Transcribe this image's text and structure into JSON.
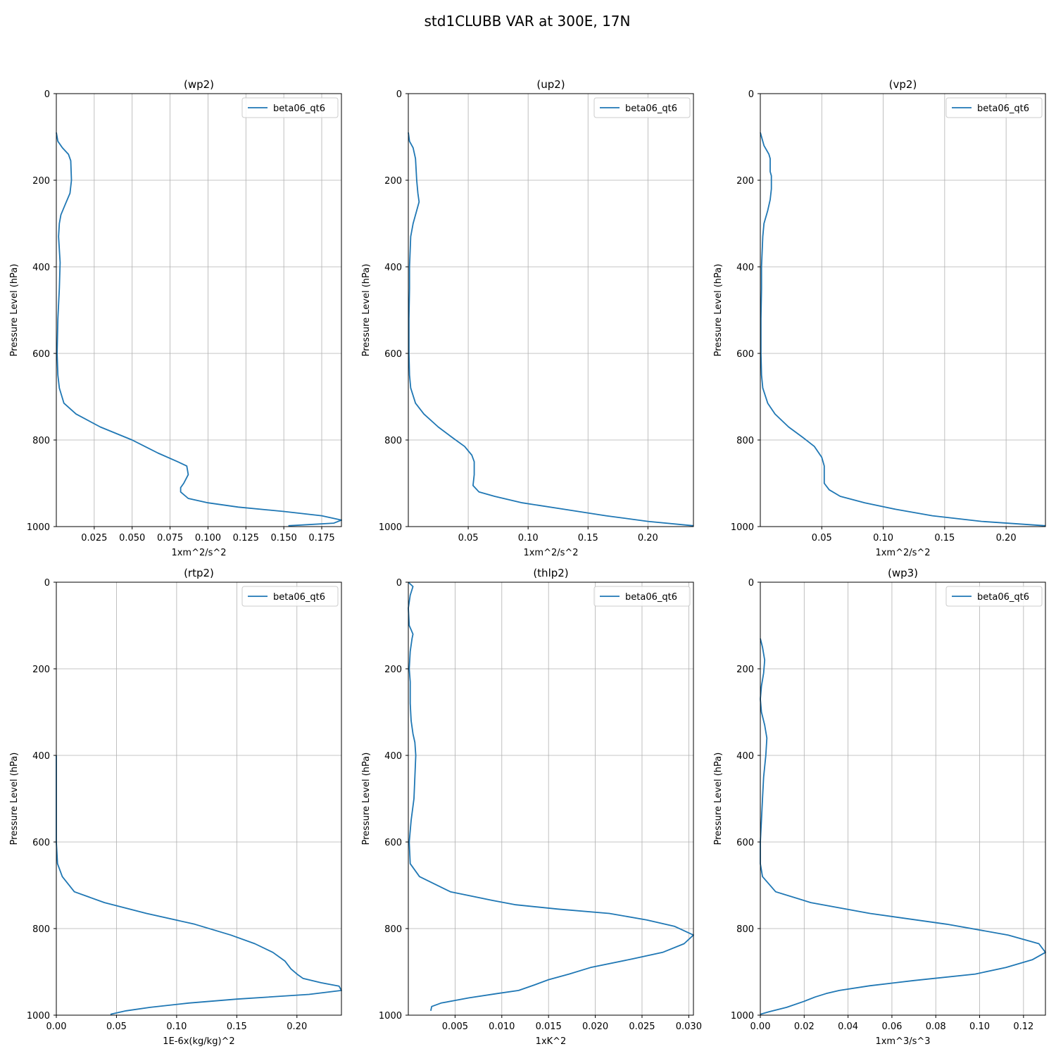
{
  "figure_title": "std1CLUBB VAR at 300E, 17N",
  "chart_data": [
    {
      "type": "line",
      "title": "(wp2)",
      "xlabel": "1xm^2/s^2",
      "ylabel": "Pressure Level (hPa)",
      "xlim": [
        0.0,
        0.188
      ],
      "ylim": [
        1000,
        0
      ],
      "xticks": [
        0.025,
        0.05,
        0.075,
        0.1,
        0.125,
        0.15,
        0.175
      ],
      "xtick_labels": [
        "0.025",
        "0.050",
        "0.075",
        "0.100",
        "0.125",
        "0.150",
        "0.175"
      ],
      "yticks": [
        0,
        200,
        400,
        600,
        800,
        1000
      ],
      "ytick_labels": [
        "0",
        "200",
        "400",
        "600",
        "800",
        "1000"
      ],
      "legend": "top-right",
      "series": [
        {
          "name": "beta06_qt6",
          "color": "#1f77b4",
          "x": [
            0.0,
            0.001,
            0.004,
            0.008,
            0.0095,
            0.01,
            0.009,
            0.006,
            0.003,
            0.002,
            0.0015,
            0.0025,
            0.002,
            0.001,
            0.0005,
            0.001,
            0.002,
            0.005,
            0.013,
            0.029,
            0.05,
            0.067,
            0.08,
            0.086,
            0.087,
            0.084,
            0.082,
            0.082,
            0.087,
            0.1,
            0.12,
            0.15,
            0.175,
            0.188,
            0.183,
            0.153
          ],
          "y": [
            90,
            110,
            125,
            140,
            155,
            200,
            230,
            255,
            280,
            300,
            330,
            390,
            450,
            520,
            600,
            650,
            680,
            715,
            740,
            770,
            800,
            830,
            850,
            860,
            880,
            900,
            910,
            920,
            935,
            945,
            955,
            965,
            975,
            985,
            992,
            998
          ]
        }
      ]
    },
    {
      "type": "line",
      "title": "(up2)",
      "xlabel": "1xm^2/s^2",
      "ylabel": "Pressure Level (hPa)",
      "xlim": [
        0.0,
        0.238
      ],
      "ylim": [
        1000,
        0
      ],
      "xticks": [
        0.05,
        0.1,
        0.15,
        0.2
      ],
      "xtick_labels": [
        "0.05",
        "0.10",
        "0.15",
        "0.20"
      ],
      "yticks": [
        0,
        200,
        400,
        600,
        800,
        1000
      ],
      "ytick_labels": [
        "0",
        "200",
        "400",
        "600",
        "800",
        "1000"
      ],
      "legend": "top-right",
      "series": [
        {
          "name": "beta06_qt6",
          "color": "#1f77b4",
          "x": [
            0.0,
            0.001,
            0.004,
            0.006,
            0.007,
            0.008,
            0.009,
            0.007,
            0.004,
            0.002,
            0.001,
            0.001,
            0.0005,
            0.0005,
            0.001,
            0.002,
            0.006,
            0.013,
            0.025,
            0.037,
            0.047,
            0.053,
            0.055,
            0.055,
            0.054,
            0.059,
            0.072,
            0.095,
            0.13,
            0.165,
            0.2,
            0.238
          ],
          "y": [
            90,
            110,
            125,
            150,
            200,
            230,
            250,
            270,
            300,
            330,
            400,
            450,
            520,
            600,
            650,
            680,
            715,
            740,
            770,
            795,
            815,
            835,
            850,
            880,
            905,
            920,
            930,
            945,
            960,
            975,
            988,
            998
          ]
        }
      ]
    },
    {
      "type": "line",
      "title": "(vp2)",
      "xlabel": "1xm^2/s^2",
      "ylabel": "Pressure Level (hPa)",
      "xlim": [
        0.0,
        0.232
      ],
      "ylim": [
        1000,
        0
      ],
      "xticks": [
        0.05,
        0.1,
        0.15,
        0.2
      ],
      "xtick_labels": [
        "0.05",
        "0.10",
        "0.15",
        "0.20"
      ],
      "yticks": [
        0,
        200,
        400,
        600,
        800,
        1000
      ],
      "ytick_labels": [
        "0",
        "200",
        "400",
        "600",
        "800",
        "1000"
      ],
      "legend": "top-right",
      "series": [
        {
          "name": "beta06_qt6",
          "color": "#1f77b4",
          "x": [
            0.0,
            0.003,
            0.007,
            0.008,
            0.008,
            0.009,
            0.009,
            0.008,
            0.006,
            0.003,
            0.002,
            0.001,
            0.001,
            0.0005,
            0.0005,
            0.001,
            0.002,
            0.006,
            0.012,
            0.023,
            0.035,
            0.044,
            0.05,
            0.052,
            0.052,
            0.056,
            0.065,
            0.085,
            0.11,
            0.14,
            0.18,
            0.232
          ],
          "y": [
            90,
            120,
            140,
            150,
            180,
            190,
            220,
            245,
            270,
            300,
            330,
            400,
            450,
            520,
            600,
            650,
            680,
            715,
            740,
            770,
            795,
            815,
            840,
            860,
            900,
            915,
            930,
            945,
            960,
            975,
            988,
            998
          ]
        }
      ]
    },
    {
      "type": "line",
      "title": "(rtp2)",
      "xlabel": "1E-6x(kg/kg)^2",
      "ylabel": "Pressure Level (hPa)",
      "xlim": [
        0.0,
        0.237
      ],
      "ylim": [
        1000,
        0
      ],
      "xticks": [
        0.0,
        0.05,
        0.1,
        0.15,
        0.2
      ],
      "xtick_labels": [
        "0.00",
        "0.05",
        "0.10",
        "0.15",
        "0.20"
      ],
      "yticks": [
        0,
        200,
        400,
        600,
        800,
        1000
      ],
      "ytick_labels": [
        "0",
        "200",
        "400",
        "600",
        "800",
        "1000"
      ],
      "legend": "top-right",
      "series": [
        {
          "name": "beta06_qt6",
          "color": "#1f77b4",
          "x": [
            0.0,
            0.0,
            0.0,
            0.001,
            0.005,
            0.015,
            0.04,
            0.075,
            0.115,
            0.145,
            0.165,
            0.18,
            0.19,
            0.195,
            0.2,
            0.205,
            0.22,
            0.235,
            0.237,
            0.21,
            0.15,
            0.11,
            0.078,
            0.058,
            0.045
          ],
          "y": [
            400,
            500,
            600,
            650,
            680,
            715,
            740,
            765,
            790,
            815,
            835,
            855,
            875,
            893,
            905,
            915,
            925,
            933,
            943,
            952,
            963,
            972,
            982,
            990,
            998
          ]
        }
      ]
    },
    {
      "type": "line",
      "title": "(thlp2)",
      "xlabel": "1xK^2",
      "ylabel": "Pressure Level (hPa)",
      "xlim": [
        0.0,
        0.0305
      ],
      "ylim": [
        1000,
        0
      ],
      "xticks": [
        0.005,
        0.01,
        0.015,
        0.02,
        0.025,
        0.03
      ],
      "xtick_labels": [
        "0.005",
        "0.010",
        "0.015",
        "0.020",
        "0.025",
        "0.030"
      ],
      "yticks": [
        0,
        200,
        400,
        600,
        800,
        1000
      ],
      "ytick_labels": [
        "0",
        "200",
        "400",
        "600",
        "800",
        "1000"
      ],
      "legend": "top-right",
      "series": [
        {
          "name": "beta06_qt6",
          "color": "#1f77b4",
          "x": [
            0.0,
            0.0005,
            0.0002,
            0.0,
            0.0001,
            0.0003,
            0.0005,
            0.0004,
            0.0002,
            0.0001,
            0.0002,
            0.0002,
            0.0003,
            0.0005,
            0.0007,
            0.0008,
            0.0006,
            0.0003,
            0.0001,
            0.0002,
            0.0012,
            0.0045,
            0.009,
            0.0115,
            0.016,
            0.0215,
            0.0255,
            0.0285,
            0.0305,
            0.0295,
            0.0272,
            0.024,
            0.0195,
            0.0172,
            0.015,
            0.0135,
            0.0118,
            0.0095,
            0.0065,
            0.0035,
            0.0025,
            0.0024
          ],
          "y": [
            0,
            10,
            30,
            60,
            100,
            110,
            120,
            130,
            160,
            200,
            230,
            280,
            320,
            350,
            370,
            400,
            500,
            550,
            600,
            650,
            680,
            715,
            735,
            745,
            755,
            765,
            780,
            795,
            815,
            835,
            855,
            870,
            890,
            905,
            918,
            930,
            943,
            950,
            960,
            972,
            980,
            990
          ]
        }
      ]
    },
    {
      "type": "line",
      "title": "(wp3)",
      "xlabel": "1xm^3/s^3",
      "ylabel": "Pressure Level (hPa)",
      "xlim": [
        0.0,
        0.13
      ],
      "ylim": [
        1000,
        0
      ],
      "xticks": [
        0.0,
        0.02,
        0.04,
        0.06,
        0.08,
        0.1,
        0.12
      ],
      "xtick_labels": [
        "0.00",
        "0.02",
        "0.04",
        "0.06",
        "0.08",
        "0.10",
        "0.12"
      ],
      "yticks": [
        0,
        200,
        400,
        600,
        800,
        1000
      ],
      "ytick_labels": [
        "0",
        "200",
        "400",
        "600",
        "800",
        "1000"
      ],
      "legend": "top-right",
      "series": [
        {
          "name": "beta06_qt6",
          "color": "#1f77b4",
          "x": [
            0.0,
            0.001,
            0.002,
            0.0015,
            0.0005,
            0.0,
            0.0005,
            0.002,
            0.003,
            0.0025,
            0.0015,
            0.001,
            0.0005,
            0.0,
            0.0,
            0.001,
            0.007,
            0.023,
            0.05,
            0.085,
            0.113,
            0.127,
            0.13,
            0.124,
            0.112,
            0.098,
            0.07,
            0.05,
            0.036,
            0.03,
            0.025,
            0.02,
            0.012,
            0.004,
            0.0
          ],
          "y": [
            130,
            150,
            180,
            210,
            240,
            270,
            300,
            330,
            360,
            400,
            450,
            500,
            550,
            600,
            650,
            680,
            715,
            740,
            765,
            790,
            815,
            835,
            855,
            872,
            890,
            905,
            920,
            932,
            943,
            950,
            958,
            968,
            982,
            992,
            998
          ]
        }
      ]
    }
  ]
}
